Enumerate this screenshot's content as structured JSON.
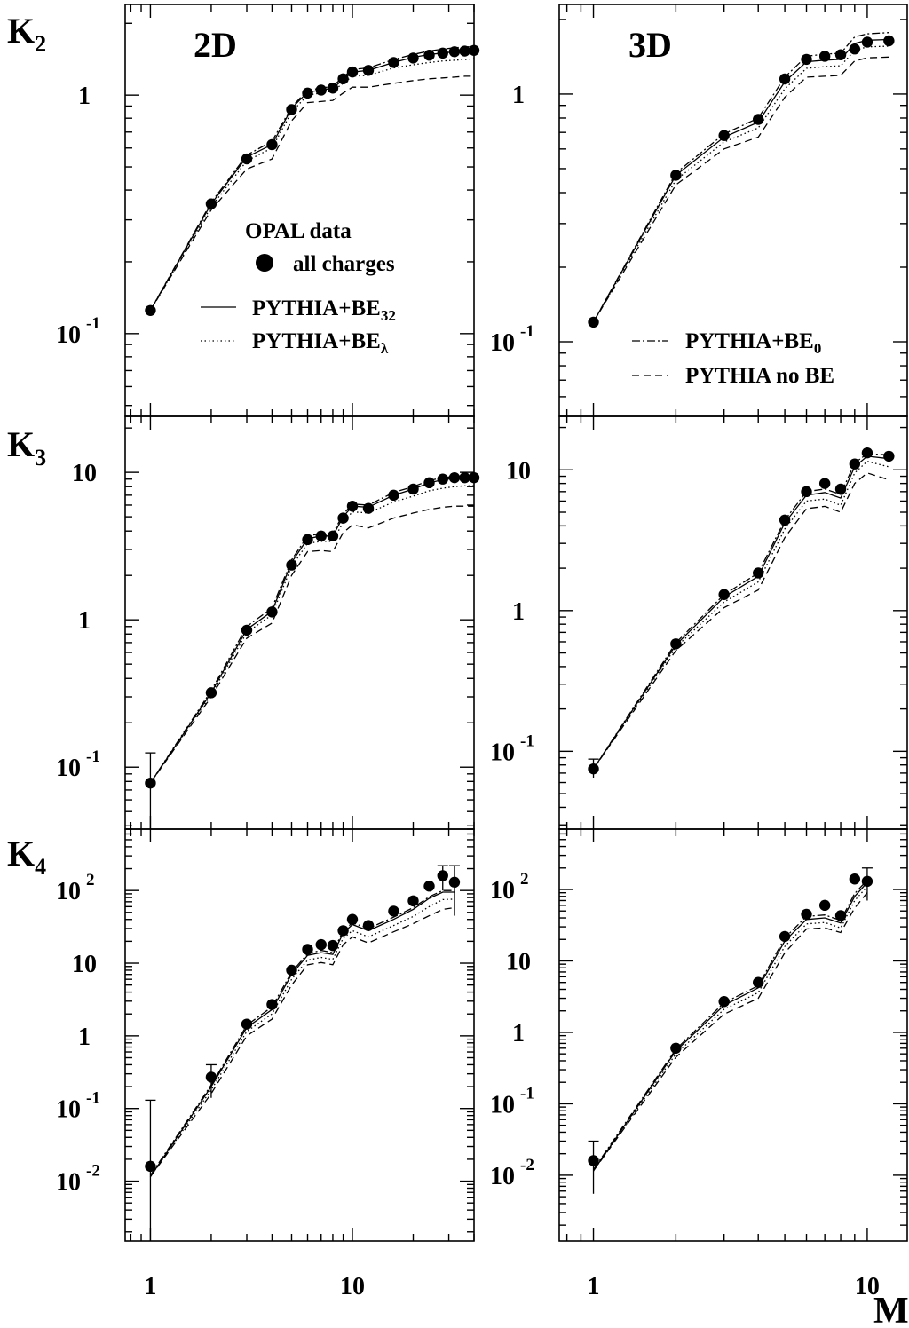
{
  "figure": {
    "xlabel": "M",
    "ylabels": [
      "K",
      "K",
      "K"
    ],
    "ylabel_subscripts": [
      "2",
      "3",
      "4"
    ],
    "column_titles": [
      "2D",
      "3D"
    ],
    "x_tick_labels": [
      "1",
      "10"
    ],
    "legend_left": {
      "heading": "OPAL data",
      "marker_label": "all charges",
      "line1": "PYTHIA+BE",
      "line1_sub": "32",
      "line2": "PYTHIA+BE",
      "line2_sub": "λ"
    },
    "legend_right": {
      "line1": "PYTHIA+BE",
      "line1_sub": "0",
      "line2": "PYTHIA no BE"
    }
  },
  "chart_data": [
    {
      "id": "K2-2D",
      "type": "line",
      "xscale": "log",
      "yscale": "log",
      "xlim": [
        0.75,
        40
      ],
      "ylim": [
        0.045,
        2.4
      ],
      "yticks": [
        {
          "v": 0.1,
          "m": "10",
          "e": "-1"
        },
        {
          "v": 1,
          "m": "1",
          "e": ""
        }
      ],
      "x": [
        1,
        2,
        3,
        4,
        5,
        6,
        7,
        8,
        9,
        10,
        12,
        16,
        20,
        24,
        28,
        32,
        36,
        40
      ],
      "points": [
        0.125,
        0.35,
        0.54,
        0.62,
        0.87,
        1.02,
        1.05,
        1.07,
        1.17,
        1.25,
        1.27,
        1.37,
        1.43,
        1.47,
        1.5,
        1.52,
        1.53,
        1.54
      ],
      "errors": [],
      "series": [
        {
          "name": "PYTHIA+BE32",
          "dash": "",
          "values": [
            0.125,
            0.35,
            0.55,
            0.62,
            0.88,
            1.03,
            1.05,
            1.07,
            1.16,
            1.25,
            1.27,
            1.37,
            1.44,
            1.48,
            1.5,
            1.52,
            1.53,
            1.54
          ]
        },
        {
          "name": "PYTHIA+BEλ",
          "dash": "1.5,3",
          "values": [
            0.125,
            0.34,
            0.53,
            0.6,
            0.85,
            1.0,
            1.02,
            1.04,
            1.12,
            1.2,
            1.21,
            1.3,
            1.34,
            1.37,
            1.39,
            1.4,
            1.41,
            1.42
          ]
        },
        {
          "name": "PYTHIA+BE0",
          "dash": "9,3,2,3",
          "values": [
            0.125,
            0.355,
            0.56,
            0.64,
            0.89,
            1.05,
            1.07,
            1.09,
            1.19,
            1.28,
            1.3,
            1.41,
            1.48,
            1.53,
            1.56,
            1.58,
            1.59,
            1.6
          ]
        },
        {
          "name": "PYTHIA no BE",
          "dash": "8,5",
          "values": [
            0.125,
            0.33,
            0.49,
            0.54,
            0.78,
            0.93,
            0.94,
            0.95,
            1.02,
            1.08,
            1.08,
            1.12,
            1.15,
            1.17,
            1.18,
            1.19,
            1.2,
            1.2
          ]
        }
      ]
    },
    {
      "id": "K2-3D",
      "type": "line",
      "xscale": "log",
      "yscale": "log",
      "xlim": [
        0.75,
        14
      ],
      "ylim": [
        0.05,
        2.3
      ],
      "yticks": [
        {
          "v": 0.1,
          "m": "10",
          "e": "-1"
        },
        {
          "v": 1,
          "m": "1",
          "e": ""
        }
      ],
      "x": [
        1,
        2,
        3,
        4,
        5,
        6,
        7,
        8,
        9,
        10,
        12
      ],
      "points": [
        0.12,
        0.47,
        0.68,
        0.79,
        1.15,
        1.38,
        1.42,
        1.44,
        1.52,
        1.62,
        1.64
      ],
      "errors": [],
      "series": [
        {
          "name": "PYTHIA+BE32",
          "dash": "",
          "values": [
            0.12,
            0.47,
            0.67,
            0.77,
            1.12,
            1.35,
            1.37,
            1.38,
            1.6,
            1.65,
            1.66
          ]
        },
        {
          "name": "PYTHIA+BEλ",
          "dash": "1.5,3",
          "values": [
            0.12,
            0.45,
            0.64,
            0.73,
            1.05,
            1.27,
            1.29,
            1.3,
            1.5,
            1.55,
            1.56
          ]
        },
        {
          "name": "PYTHIA+BE0",
          "dash": "9,3,2,3",
          "values": [
            0.12,
            0.48,
            0.69,
            0.8,
            1.17,
            1.42,
            1.45,
            1.46,
            1.7,
            1.75,
            1.77
          ]
        },
        {
          "name": "PYTHIA no BE",
          "dash": "8,5",
          "values": [
            0.12,
            0.43,
            0.6,
            0.67,
            0.97,
            1.17,
            1.18,
            1.19,
            1.36,
            1.4,
            1.41
          ]
        }
      ]
    },
    {
      "id": "K3-2D",
      "type": "line",
      "xscale": "log",
      "yscale": "log",
      "xlim": [
        0.75,
        40
      ],
      "ylim": [
        0.038,
        24
      ],
      "yticks": [
        {
          "v": 0.1,
          "m": "10",
          "e": "-1"
        },
        {
          "v": 1,
          "m": "1",
          "e": ""
        },
        {
          "v": 10,
          "m": "10",
          "e": ""
        }
      ],
      "x": [
        1,
        2,
        3,
        4,
        5,
        6,
        7,
        8,
        9,
        10,
        12,
        16,
        20,
        24,
        28,
        32,
        36,
        40
      ],
      "points": [
        0.078,
        0.32,
        0.85,
        1.13,
        2.35,
        3.5,
        3.7,
        3.7,
        4.9,
        5.9,
        5.7,
        7.0,
        7.7,
        8.5,
        9.0,
        9.2,
        9.2,
        9.2
      ],
      "errors": [
        {
          "x": 1,
          "lo": 0.025,
          "hi": 0.125
        }
      ],
      "series": [
        {
          "name": "PYTHIA+BE32",
          "dash": "",
          "values": [
            0.078,
            0.32,
            0.86,
            1.14,
            2.45,
            3.55,
            3.7,
            3.7,
            5.0,
            5.9,
            5.8,
            7.0,
            7.7,
            8.5,
            8.9,
            9.1,
            9.2,
            9.2
          ]
        },
        {
          "name": "PYTHIA+BEλ",
          "dash": "1.5,3",
          "values": [
            0.078,
            0.31,
            0.82,
            1.08,
            2.3,
            3.3,
            3.4,
            3.4,
            4.6,
            5.4,
            5.3,
            6.3,
            6.9,
            7.5,
            7.8,
            8.0,
            8.1,
            8.1
          ]
        },
        {
          "name": "PYTHIA+BE0",
          "dash": "9,3,2,3",
          "values": [
            0.078,
            0.33,
            0.9,
            1.2,
            2.55,
            3.7,
            3.85,
            3.85,
            5.2,
            6.1,
            6.0,
            7.3,
            8.0,
            8.8,
            9.2,
            9.4,
            9.5,
            9.5
          ]
        },
        {
          "name": "PYTHIA no BE",
          "dash": "8,5",
          "values": [
            0.078,
            0.3,
            0.75,
            0.95,
            2.0,
            2.9,
            2.95,
            2.9,
            3.9,
            4.4,
            4.2,
            4.9,
            5.3,
            5.6,
            5.8,
            5.9,
            5.9,
            5.9
          ]
        }
      ]
    },
    {
      "id": "K3-3D",
      "type": "line",
      "xscale": "log",
      "yscale": "log",
      "xlim": [
        0.75,
        14
      ],
      "ylim": [
        0.028,
        24
      ],
      "yticks": [
        {
          "v": 0.1,
          "m": "10",
          "e": "-1"
        },
        {
          "v": 1,
          "m": "1",
          "e": ""
        },
        {
          "v": 10,
          "m": "10",
          "e": ""
        }
      ],
      "x": [
        1,
        2,
        3,
        4,
        5,
        6,
        7,
        8,
        9,
        10,
        12
      ],
      "points": [
        0.075,
        0.58,
        1.3,
        1.85,
        4.4,
        7.0,
        8.0,
        7.3,
        11.0,
        13.2,
        12.5
      ],
      "errors": [
        {
          "x": 1,
          "lo": 0.065,
          "hi": 0.088
        }
      ],
      "series": [
        {
          "name": "PYTHIA+BE32",
          "dash": "",
          "values": [
            0.075,
            0.57,
            1.25,
            1.75,
            4.2,
            6.6,
            6.9,
            6.3,
            10.5,
            12.5,
            12.0
          ]
        },
        {
          "name": "PYTHIA+BEλ",
          "dash": "1.5,3",
          "values": [
            0.075,
            0.55,
            1.15,
            1.6,
            3.8,
            6.0,
            6.2,
            5.6,
            9.5,
            11.5,
            10.5
          ]
        },
        {
          "name": "PYTHIA+BE0",
          "dash": "9,3,2,3",
          "values": [
            0.075,
            0.59,
            1.3,
            1.85,
            4.4,
            7.0,
            7.3,
            6.7,
            11.2,
            13.0,
            12.8
          ]
        },
        {
          "name": "PYTHIA no BE",
          "dash": "8,5",
          "values": [
            0.075,
            0.52,
            1.05,
            1.4,
            3.3,
            5.3,
            5.5,
            5.0,
            8.0,
            9.5,
            8.5
          ]
        }
      ]
    },
    {
      "id": "K4-2D",
      "type": "line",
      "xscale": "log",
      "yscale": "log",
      "xlim": [
        0.75,
        40
      ],
      "ylim": [
        0.0015,
        700
      ],
      "yticks": [
        {
          "v": 0.01,
          "m": "10",
          "e": "-2"
        },
        {
          "v": 0.1,
          "m": "10",
          "e": "-1"
        },
        {
          "v": 1,
          "m": "1",
          "e": ""
        },
        {
          "v": 10,
          "m": "10",
          "e": ""
        },
        {
          "v": 100,
          "m": "10",
          "e": "2"
        }
      ],
      "x": [
        1,
        2,
        3,
        4,
        5,
        6,
        7,
        8,
        9,
        10,
        12,
        16,
        20,
        24,
        28,
        32
      ],
      "points": [
        0.016,
        0.27,
        1.45,
        2.7,
        8.0,
        15.5,
        18.0,
        17.5,
        28.0,
        40.0,
        33.0,
        52.0,
        72.0,
        115.0,
        160.0,
        130.0
      ],
      "errors": [
        {
          "x": 1,
          "lo": 0.0015,
          "hi": 0.13
        },
        {
          "x": 2,
          "lo": 0.14,
          "hi": 0.4
        },
        {
          "x": 28,
          "lo": 100,
          "hi": 220
        },
        {
          "x": 32,
          "lo": 45,
          "hi": 220
        }
      ],
      "series": [
        {
          "name": "PYTHIA+BE32",
          "dash": "",
          "values": [
            0.0115,
            0.2,
            1.3,
            2.3,
            7.0,
            12.8,
            14.0,
            13.2,
            26.0,
            34.0,
            28.0,
            40.0,
            55.0,
            78.0,
            95.0,
            95.0
          ]
        },
        {
          "name": "PYTHIA+BEλ",
          "dash": "1.5,3",
          "values": [
            0.0115,
            0.18,
            1.15,
            2.0,
            6.0,
            11.0,
            12.0,
            11.3,
            22.0,
            28.0,
            23.0,
            33.0,
            44.0,
            60.0,
            75.0,
            76.0
          ]
        },
        {
          "name": "PYTHIA+BE0",
          "dash": "9,3,2,3",
          "values": [
            0.012,
            0.21,
            1.4,
            2.5,
            7.5,
            13.5,
            15.0,
            14.0,
            28.0,
            36.0,
            30.0,
            43.0,
            58.0,
            82.0,
            100.0,
            100.0
          ]
        },
        {
          "name": "PYTHIA no BE",
          "dash": "8,5",
          "values": [
            0.0115,
            0.16,
            1.0,
            1.7,
            5.0,
            9.5,
            10.2,
            9.5,
            18.0,
            23.0,
            19.0,
            27.0,
            35.0,
            45.0,
            55.0,
            58.0
          ]
        }
      ]
    },
    {
      "id": "K4-3D",
      "type": "line",
      "xscale": "log",
      "yscale": "log",
      "xlim": [
        0.75,
        14
      ],
      "ylim": [
        0.0012,
        700
      ],
      "yticks": [
        {
          "v": 0.01,
          "m": "10",
          "e": "-2"
        },
        {
          "v": 0.1,
          "m": "10",
          "e": "-1"
        },
        {
          "v": 1,
          "m": "1",
          "e": ""
        },
        {
          "v": 10,
          "m": "10",
          "e": ""
        },
        {
          "v": 100,
          "m": "10",
          "e": "2"
        }
      ],
      "x": [
        1,
        2,
        3,
        4,
        5,
        6,
        7,
        8,
        9,
        10
      ],
      "points": [
        0.016,
        0.6,
        2.7,
        5.0,
        22.0,
        45.0,
        60.0,
        43.0,
        140.0,
        130.0
      ],
      "errors": [
        {
          "x": 1,
          "lo": 0.0055,
          "hi": 0.03
        },
        {
          "x": 10,
          "lo": 70,
          "hi": 200
        }
      ],
      "series": [
        {
          "name": "PYTHIA+BE32",
          "dash": "",
          "values": [
            0.0115,
            0.55,
            2.4,
            4.2,
            19.0,
            38.0,
            40.0,
            34.0,
            80.0,
            125.0
          ]
        },
        {
          "name": "PYTHIA+BEλ",
          "dash": "1.5,3",
          "values": [
            0.0115,
            0.5,
            2.1,
            3.6,
            16.0,
            33.0,
            34.5,
            29.0,
            70.0,
            110.0
          ]
        },
        {
          "name": "PYTHIA+BE0",
          "dash": "9,3,2,3",
          "values": [
            0.012,
            0.58,
            2.6,
            4.5,
            21.0,
            42.0,
            44.0,
            37.0,
            88.0,
            135.0
          ]
        },
        {
          "name": "PYTHIA no BE",
          "dash": "8,5",
          "values": [
            0.0115,
            0.45,
            1.8,
            3.0,
            13.0,
            28.0,
            29.0,
            25.0,
            55.0,
            90.0
          ]
        }
      ]
    }
  ]
}
